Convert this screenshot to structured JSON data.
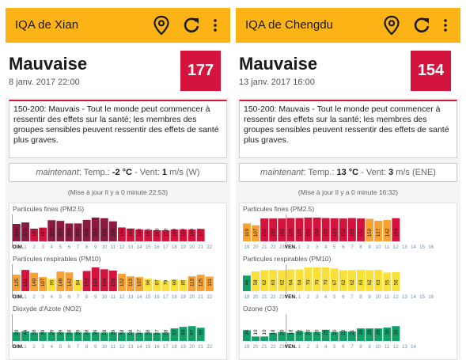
{
  "cities": [
    {
      "title": "IQA de Xian",
      "level": "Mauvaise",
      "date": "8 janv. 2017 22:00",
      "aqi": "177",
      "description": "150-200: Mauvais - Tout le monde peut commencer à ressentir des effets sur la santé; les membres des groupes sensibles peuvent ressentir des effets de santé plus graves.",
      "weather": {
        "prefix": "maintenant",
        "temp_label": ": Temp.: ",
        "temp": "-2 °C",
        "wind_label": " - Vent: ",
        "wind_speed": "1",
        "wind_unit": " m/s (W)"
      },
      "updated": "(Mise à jour Il y a 0 minute 22:53)",
      "charts": [
        {
          "title": "Particules fines (PM2.5)",
          "day_label": "DIM.",
          "day_index": 0,
          "values": [
            249,
            270,
            181,
            197,
            303,
            293,
            256,
            256,
            308,
            340,
            331,
            286,
            199,
            183,
            169,
            165,
            160,
            158,
            169,
            169,
            169,
            177
          ],
          "ticks": [
            "",
            "1",
            "2",
            "3",
            "4",
            "5",
            "6",
            "7",
            "8",
            "9",
            "10",
            "11",
            "12",
            "13",
            "14",
            "15",
            "16",
            "17",
            "18",
            "19",
            "20",
            "21",
            "22"
          ]
        },
        {
          "title": "Particules respirables (PM10)",
          "day_label": "DIM.",
          "day_index": 0,
          "values": [
            125,
            161,
            140,
            107,
            95,
            149,
            142,
            84,
            153,
            180,
            166,
            156,
            132,
            113,
            107,
            96,
            87,
            79,
            90,
            85,
            113,
            125,
            111
          ],
          "ticks": [
            "",
            "1",
            "2",
            "3",
            "4",
            "5",
            "6",
            "7",
            "8",
            "9",
            "10",
            "11",
            "12",
            "13",
            "14",
            "15",
            "16",
            "17",
            "18",
            "19",
            "20",
            "21",
            "22"
          ]
        },
        {
          "title": "Dioxyde d'Azote (NO2)",
          "day_label": "DIM.",
          "day_index": 0,
          "values": [
            39,
            44,
            38,
            39,
            39,
            39,
            38,
            39,
            38,
            39,
            38,
            39,
            38,
            38,
            37,
            38,
            37,
            38,
            57,
            64,
            67,
            60
          ],
          "ticks": [
            "",
            "1",
            "2",
            "3",
            "4",
            "5",
            "6",
            "7",
            "8",
            "9",
            "10",
            "11",
            "12",
            "13",
            "14",
            "15",
            "16",
            "17",
            "18",
            "19",
            "20",
            "21",
            "22"
          ]
        }
      ]
    },
    {
      "title": "IQA de Chengdu",
      "level": "Mauvaise",
      "date": "13 janv. 2017 16:00",
      "aqi": "154",
      "description": "150-200: Mauvais - Tout le monde peut commencer à ressentir des effets sur la santé; les membres des groupes sensibles peuvent ressentir des effets de santé plus graves.",
      "weather": {
        "prefix": "maintenant",
        "temp_label": ": Temp.: ",
        "temp": "13 °C",
        "wind_label": " - Vent: ",
        "wind_speed": "3",
        "wind_unit": " m/s (ENE)"
      },
      "updated": "(Mise à jour Il y a 0 minute 16:32)",
      "charts": [
        {
          "title": "Particules fines (PM2.5)",
          "day_label": "VEN.",
          "day_index": 5,
          "values": [
            119,
            107,
            152,
            152,
            152,
            155,
            155,
            158,
            158,
            155,
            153,
            152,
            155,
            152,
            150,
            137,
            142,
            154
          ],
          "ticks": [
            "19",
            "20",
            "21",
            "22",
            "23",
            "VEN.",
            "1",
            "2",
            "3",
            "4",
            "5",
            "6",
            "7",
            "8",
            "9",
            "10",
            "11",
            "12",
            "13",
            "14",
            "15",
            "16"
          ]
        },
        {
          "title": "Particules respirables (PM10)",
          "day_label": "VEN.",
          "day_index": 5,
          "values": [
            46,
            58,
            62,
            63,
            62,
            64,
            64,
            70,
            70,
            70,
            67,
            62,
            62,
            63,
            62,
            63,
            55,
            56
          ],
          "ticks": [
            "19",
            "20",
            "21",
            "22",
            "23",
            "VEN.",
            "1",
            "2",
            "3",
            "4",
            "5",
            "6",
            "7",
            "8",
            "9",
            "10",
            "11",
            "12",
            "13",
            "14",
            "15",
            "16"
          ]
        },
        {
          "title": "Ozone (O3)",
          "day_label": "VEN.",
          "day_index": 5,
          "values": [
            24,
            10,
            10,
            18,
            20,
            18,
            22,
            20,
            20,
            25,
            20,
            22,
            21,
            28,
            28,
            28,
            30,
            33
          ],
          "ticks": [
            "19",
            "20",
            "21",
            "22",
            "23",
            "VEN.",
            "1",
            "2",
            "3",
            "4",
            "5",
            "6",
            "7",
            "8",
            "9",
            "10",
            "11",
            "12",
            "13",
            "14"
          ]
        }
      ]
    }
  ],
  "colors": {
    "appbar": "#fbb316",
    "unhealthy": "#d4143c",
    "very_unhealthy": "#8b1a3f",
    "sensitive": "#f8a234",
    "moderate": "#f9e03b",
    "good": "#12a068"
  }
}
